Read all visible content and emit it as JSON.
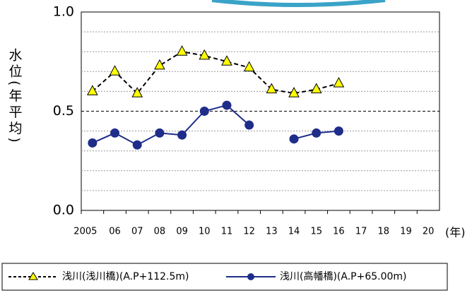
{
  "chart_data": {
    "type": "line",
    "y_label": "水位(年平均)",
    "x_unit": "(年)",
    "categories": [
      "2005",
      "06",
      "07",
      "08",
      "09",
      "10",
      "11",
      "12",
      "13",
      "14",
      "15",
      "16",
      "17",
      "18",
      "19",
      "20"
    ],
    "series": [
      {
        "name": "浅川(浅川橋)(A.P+112.5m)",
        "color": "#000000",
        "marker": "triangle",
        "marker_color": "#ffff00",
        "dashed": true,
        "values": [
          0.6,
          0.7,
          0.59,
          0.73,
          0.8,
          0.78,
          0.75,
          0.72,
          0.61,
          0.59,
          0.61,
          0.64,
          null,
          null,
          null,
          null
        ]
      },
      {
        "name": "浅川(高幡橋)(A.P+65.00m)",
        "color": "#1f2d8a",
        "marker": "circle",
        "marker_color": "#1f2d8a",
        "dashed": false,
        "values": [
          0.34,
          0.39,
          0.33,
          0.39,
          0.38,
          0.5,
          0.53,
          0.43,
          null,
          0.36,
          0.39,
          0.4,
          null,
          null,
          null,
          null
        ]
      }
    ],
    "ylim": [
      0,
      1
    ],
    "yticks": [
      {
        "value": 0,
        "label": "0.0"
      },
      {
        "value": 0.5,
        "label": "0.5"
      },
      {
        "value": 1,
        "label": "1.0"
      }
    ],
    "minor_grid": [
      0.1,
      0.2,
      0.3,
      0.4,
      0.6,
      0.7,
      0.8,
      0.9
    ],
    "grid": true,
    "legend": "bottom"
  }
}
